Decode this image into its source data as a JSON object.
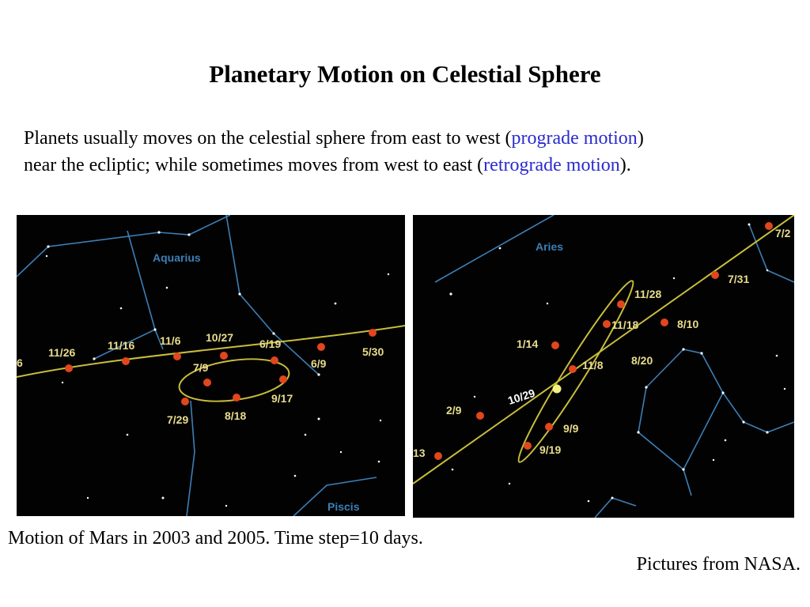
{
  "title": "Planetary Motion on Celestial Sphere",
  "intro": {
    "part1": "Planets usually moves on the celestial sphere from east to west (",
    "prograde": "prograde motion",
    "part2": ")",
    "part3": "near the ecliptic; while sometimes moves from west to east (",
    "retrograde": "retrograde motion",
    "part4": ")."
  },
  "left_chart": {
    "constellations": [
      "Aquarius",
      "Piscis"
    ],
    "dates": [
      "11/26",
      "11/16",
      "11/6",
      "10/27",
      "6/19",
      "6/9",
      "5/30",
      "7/9",
      "9/17",
      "8/18",
      "7/29"
    ],
    "edge_label": "6"
  },
  "right_chart": {
    "constellations": [
      "Aries"
    ],
    "dates": [
      "7/2",
      "7/31",
      "11/28",
      "11/18",
      "8/10",
      "1/14",
      "11/8",
      "8/20",
      "2/9",
      "9/9",
      "9/19",
      "13"
    ],
    "current_date": "10/29"
  },
  "caption": "Motion of Mars in 2003 and 2005. Time step=10 days.",
  "credit": "Pictures from NASA.",
  "colors": {
    "sky": "#020202",
    "ecliptic": "#c8bd3c",
    "planet": "#e2461c",
    "constellation": "#3c7fb7",
    "link": "#2a2ad0"
  }
}
